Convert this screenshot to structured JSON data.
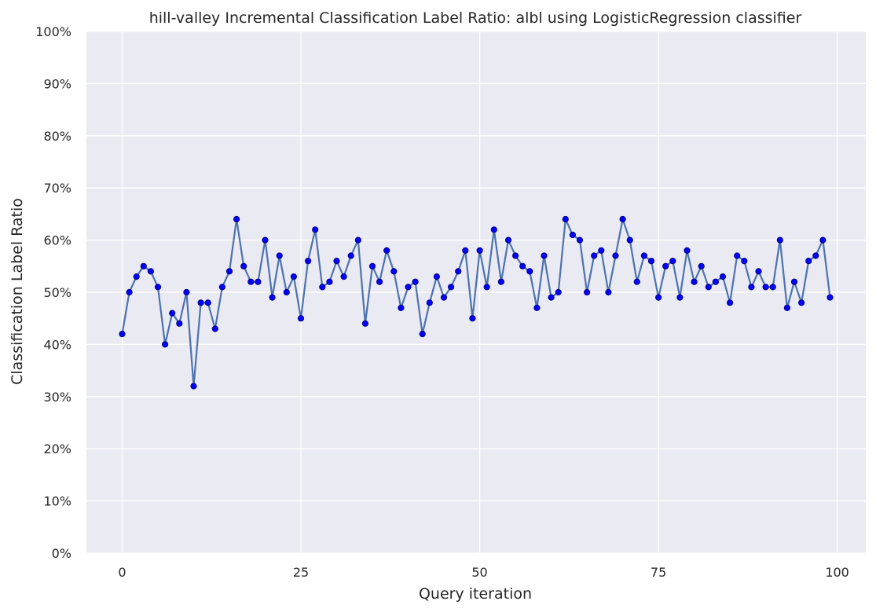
{
  "chart_data": {
    "type": "line",
    "title": "hill-valley Incremental Classification Label Ratio: albl using LogisticRegression classifier",
    "xlabel": "Query iteration",
    "ylabel": "Classification Label Ratio",
    "xlim": [
      -5,
      104
    ],
    "ylim": [
      0,
      100
    ],
    "xticks": [
      0,
      25,
      50,
      75,
      100
    ],
    "xtick_labels": [
      "0",
      "25",
      "50",
      "75",
      "100"
    ],
    "yticks": [
      0,
      10,
      20,
      30,
      40,
      50,
      60,
      70,
      80,
      90,
      100
    ],
    "ytick_labels": [
      "0%",
      "10%",
      "20%",
      "30%",
      "40%",
      "50%",
      "60%",
      "70%",
      "80%",
      "90%",
      "100%"
    ],
    "grid": true,
    "colors": {
      "background": "#eaeaf2",
      "grid": "#ffffff",
      "line": "#4c72b0",
      "marker": "#0000ff",
      "marker_edge": "#00008b"
    },
    "x": [
      0,
      1,
      2,
      3,
      4,
      5,
      6,
      7,
      8,
      9,
      10,
      11,
      12,
      13,
      14,
      15,
      16,
      17,
      18,
      19,
      20,
      21,
      22,
      23,
      24,
      25,
      26,
      27,
      28,
      29,
      30,
      31,
      32,
      33,
      34,
      35,
      36,
      37,
      38,
      39,
      40,
      41,
      42,
      43,
      44,
      45,
      46,
      47,
      48,
      49,
      50,
      51,
      52,
      53,
      54,
      55,
      56,
      57,
      58,
      59,
      60,
      61,
      62,
      63,
      64,
      65,
      66,
      67,
      68,
      69,
      70,
      71,
      72,
      73,
      74,
      75,
      76,
      77,
      78,
      79,
      80,
      81,
      82,
      83,
      84,
      85,
      86,
      87,
      88,
      89,
      90,
      91,
      92,
      93,
      94,
      95,
      96,
      97,
      98,
      99
    ],
    "values": [
      42,
      50,
      53,
      55,
      54,
      51,
      40,
      46,
      44,
      50,
      32,
      48,
      48,
      43,
      51,
      54,
      64,
      55,
      52,
      52,
      60,
      49,
      57,
      50,
      53,
      45,
      56,
      62,
      51,
      52,
      56,
      53,
      57,
      60,
      44,
      55,
      52,
      58,
      54,
      47,
      51,
      52,
      42,
      48,
      53,
      49,
      51,
      54,
      58,
      45,
      58,
      51,
      62,
      52,
      60,
      57,
      55,
      54,
      47,
      57,
      49,
      50,
      64,
      61,
      60,
      50,
      57,
      58,
      50,
      57,
      64,
      60,
      52,
      57,
      56,
      49,
      55,
      56,
      49,
      58,
      52,
      55,
      51,
      52,
      53,
      48,
      57,
      56,
      51,
      54,
      51,
      51,
      60,
      47,
      52,
      48,
      56,
      57,
      60,
      49
    ]
  }
}
